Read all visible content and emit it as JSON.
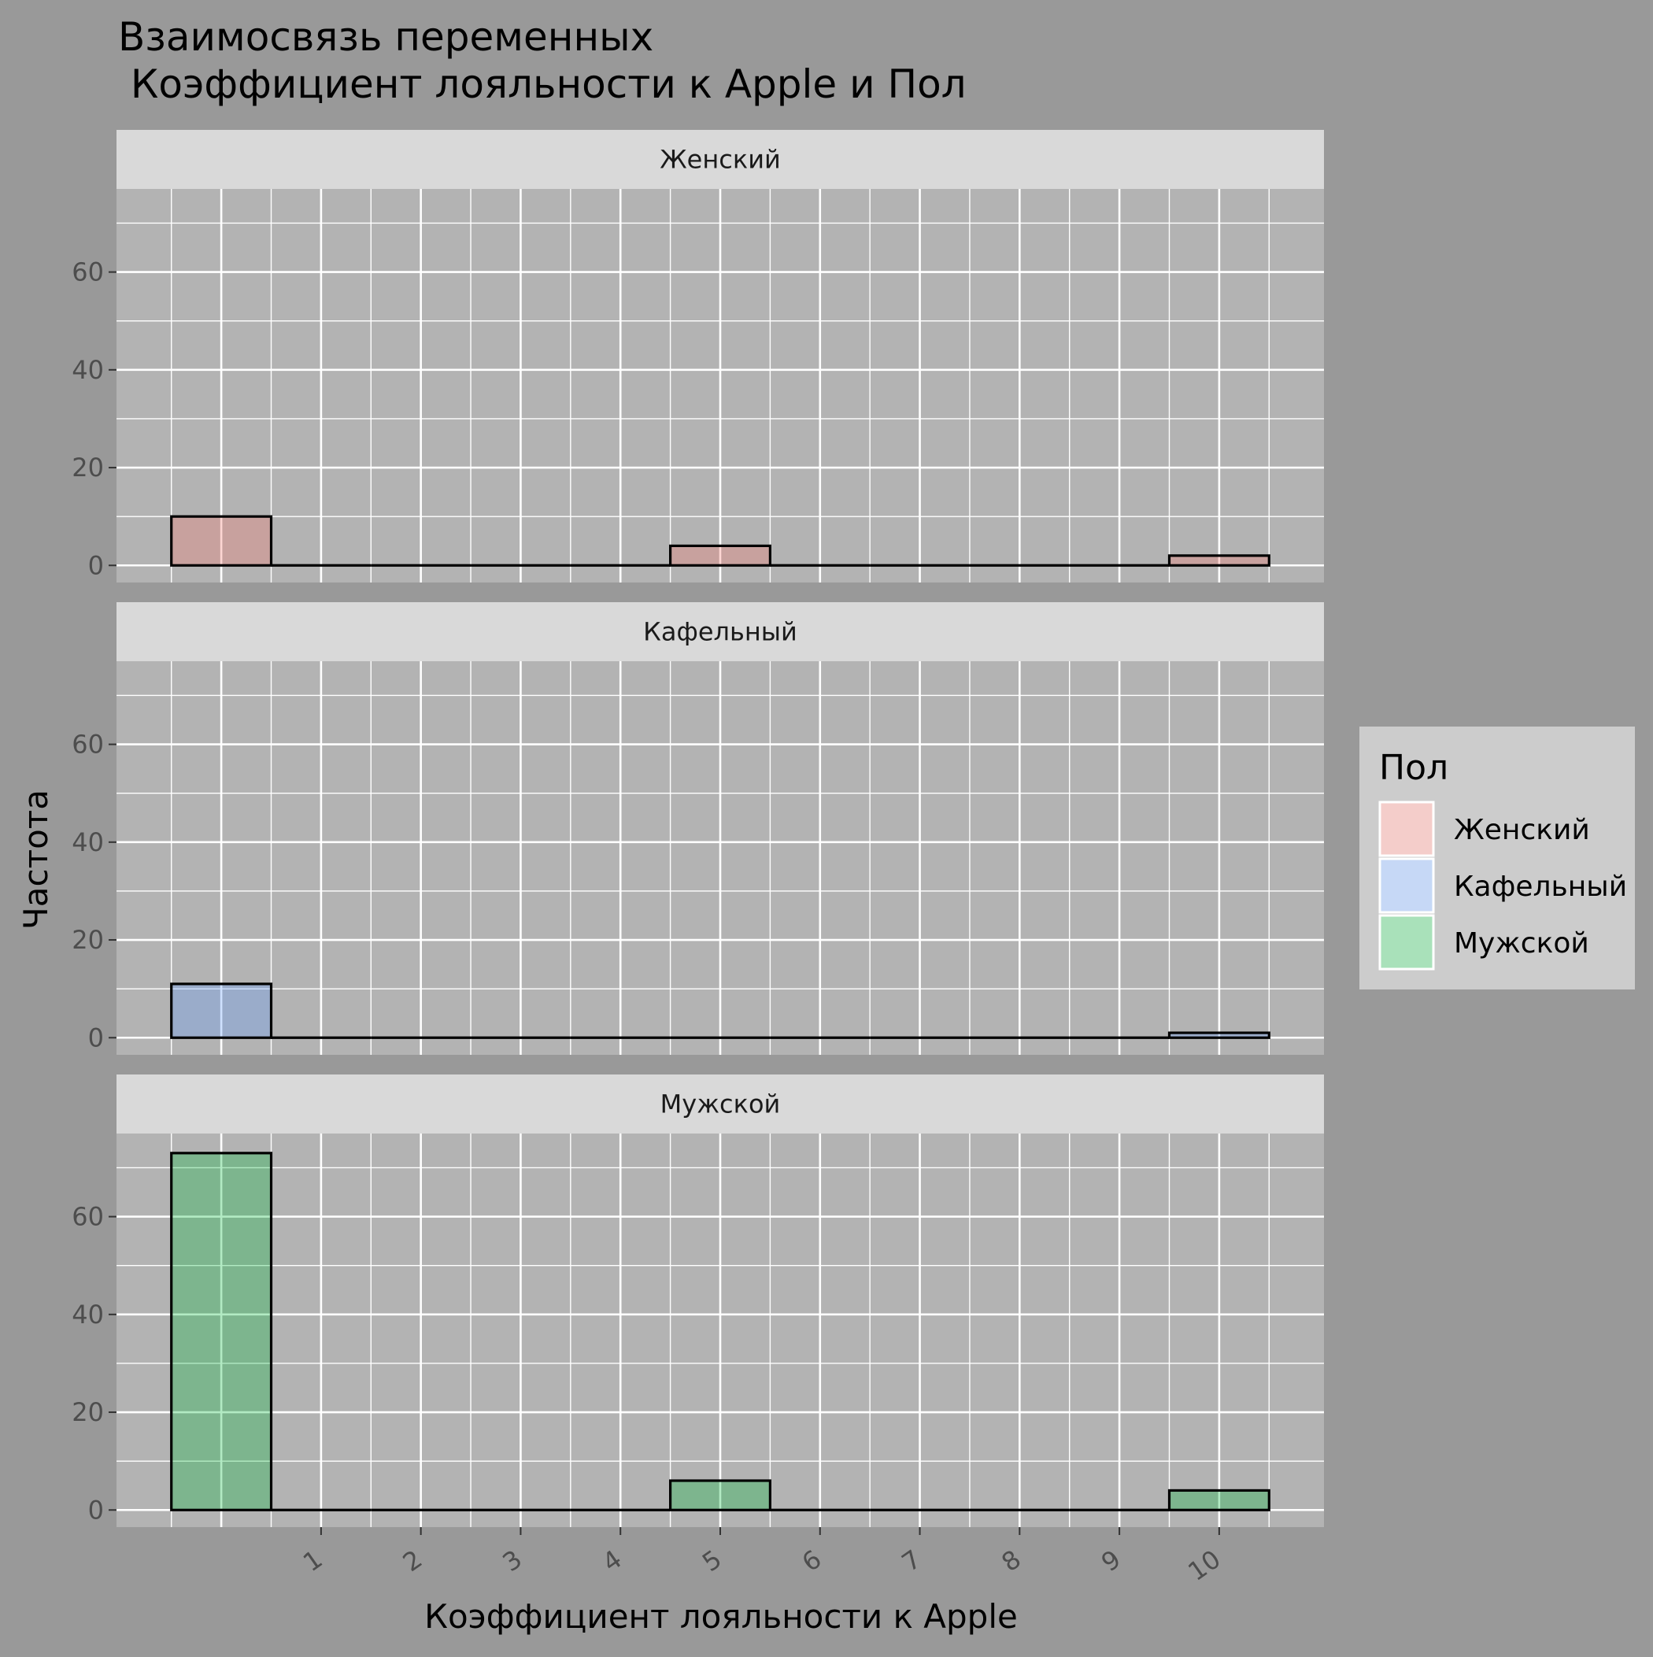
{
  "chart_data": {
    "type": "bar",
    "title_line1": "Взаимосвязь переменных",
    "title_line2": " Коэффициент лояльности к Apple и Пол",
    "xlabel": "Коэффициент лояльности к Apple",
    "ylabel": "Частота",
    "x": [
      0,
      1,
      2,
      3,
      4,
      5,
      6,
      7,
      8,
      9,
      10
    ],
    "x_tick_labels": [
      "1",
      "2",
      "3",
      "4",
      "5",
      "6",
      "7",
      "8",
      "9",
      "10"
    ],
    "x_tick_values": [
      1,
      2,
      3,
      4,
      5,
      6,
      7,
      8,
      9,
      10
    ],
    "xlim": [
      -1.05,
      11.05
    ],
    "ylim": [
      -3.5,
      77
    ],
    "y_ticks": [
      0,
      20,
      40,
      60
    ],
    "facets": [
      {
        "name": "Женский",
        "color": "#F8766D",
        "values": [
          10,
          0,
          0,
          0,
          0,
          4,
          0,
          0,
          0,
          0,
          2
        ]
      },
      {
        "name": "Кафельный",
        "color": "#619CFF",
        "values": [
          11,
          0,
          0,
          0,
          0,
          0,
          0,
          0,
          0,
          0,
          1
        ]
      },
      {
        "name": "Мужской",
        "color": "#00BA38",
        "values": [
          73,
          0,
          0,
          0,
          0,
          6,
          0,
          0,
          0,
          0,
          4
        ]
      }
    ],
    "legend": {
      "title": "Пол",
      "position": "right",
      "items": [
        {
          "label": "Женский",
          "color": "#F8766D"
        },
        {
          "label": "Кафельный",
          "color": "#619CFF"
        },
        {
          "label": "Мужской",
          "color": "#00BA38"
        }
      ]
    },
    "grid": true,
    "panel_background": "#B3B3B3",
    "plot_background": "#999999",
    "strip_background": "#D9D9D9",
    "legend_background": "#CCCCCC"
  }
}
